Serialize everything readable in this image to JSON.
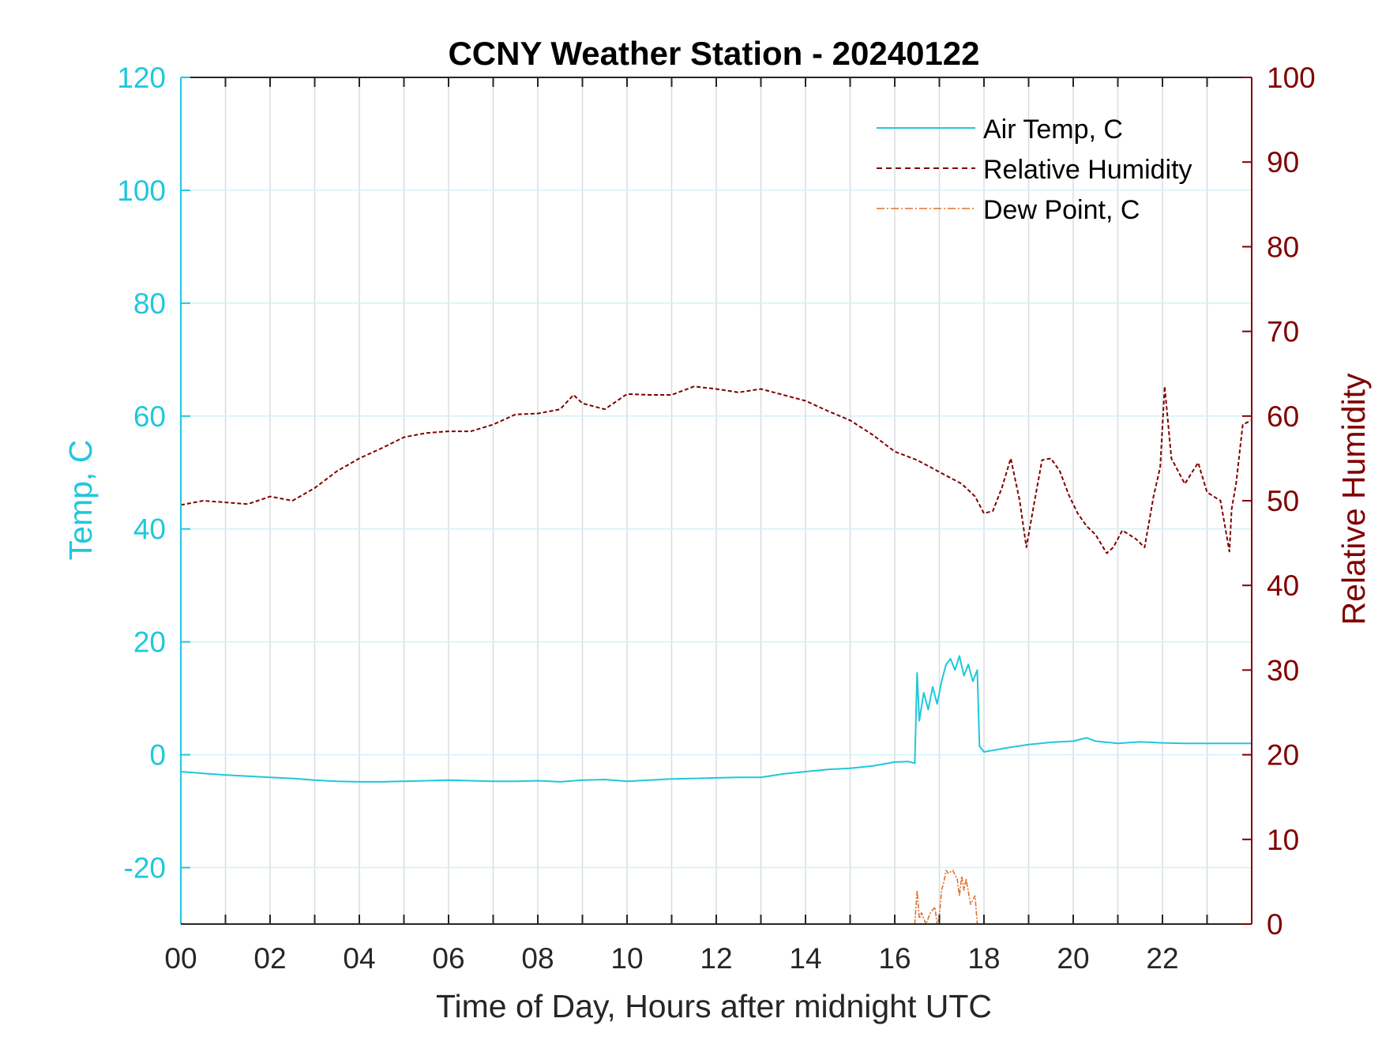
{
  "chart_data": {
    "type": "line",
    "title": "CCNY Weather Station - 20240122",
    "xlabel": "Time of Day, Hours after midnight UTC",
    "ylabel_left": "Temp, C",
    "ylabel_right": "Relative Humidity",
    "xlim": [
      0,
      24
    ],
    "ylim_left": [
      -30,
      120
    ],
    "ylim_right": [
      0,
      100
    ],
    "x_ticks": [
      0,
      2,
      4,
      6,
      8,
      10,
      12,
      14,
      16,
      18,
      20,
      22
    ],
    "x_tick_labels": [
      "00",
      "02",
      "04",
      "06",
      "08",
      "10",
      "12",
      "14",
      "16",
      "18",
      "20",
      "22"
    ],
    "y_left_ticks": [
      -20,
      0,
      20,
      40,
      60,
      80,
      100,
      120
    ],
    "y_left_tick_labels": [
      "-20",
      "0",
      "20",
      "40",
      "60",
      "80",
      "100",
      "120"
    ],
    "y_right_ticks": [
      0,
      10,
      20,
      30,
      40,
      50,
      60,
      70,
      80,
      90,
      100
    ],
    "y_right_tick_labels": [
      "0",
      "10",
      "20",
      "30",
      "40",
      "50",
      "60",
      "70",
      "80",
      "90",
      "100"
    ],
    "grid": true,
    "legend_position": "top-right",
    "colors": {
      "air_temp": "#1fc8dc",
      "relative_humidity": "#800000",
      "dew_point": "#e07030",
      "grid_vertical": "#d8dde3",
      "grid_horizontal": "#d2f2f6"
    },
    "series": [
      {
        "name": "Air Temp, C",
        "axis": "left",
        "style": "solid",
        "x": [
          0,
          0.5,
          1,
          1.5,
          2,
          2.5,
          3,
          3.5,
          4,
          4.5,
          5,
          5.5,
          6,
          6.5,
          7,
          7.5,
          8,
          8.5,
          9,
          9.5,
          10,
          10.5,
          11,
          11.5,
          12,
          12.5,
          13,
          13.5,
          14,
          14.5,
          15,
          15.5,
          16,
          16.3,
          16.45,
          16.5,
          16.55,
          16.65,
          16.75,
          16.85,
          16.95,
          17.05,
          17.15,
          17.25,
          17.35,
          17.45,
          17.55,
          17.65,
          17.75,
          17.85,
          17.9,
          18,
          18.5,
          19,
          19.5,
          20,
          20.3,
          20.5,
          21,
          21.5,
          22,
          22.5,
          23,
          23.5,
          24
        ],
        "values": [
          -3,
          -3.3,
          -3.6,
          -3.8,
          -4,
          -4.2,
          -4.5,
          -4.7,
          -4.8,
          -4.8,
          -4.7,
          -4.6,
          -4.5,
          -4.6,
          -4.7,
          -4.7,
          -4.6,
          -4.8,
          -4.5,
          -4.4,
          -4.7,
          -4.5,
          -4.3,
          -4.2,
          -4.1,
          -4,
          -4,
          -3.4,
          -3,
          -2.6,
          -2.4,
          -2,
          -1.3,
          -1.2,
          -1.5,
          14.5,
          6,
          11,
          8,
          12,
          9,
          13,
          16,
          17,
          15,
          17.5,
          14,
          16,
          13,
          15,
          1.5,
          0.5,
          1.2,
          1.8,
          2.2,
          2.4,
          3,
          2.4,
          2,
          2.3,
          2.1,
          2,
          2,
          2,
          2
        ]
      },
      {
        "name": "Relative Humidity",
        "axis": "right",
        "style": "dashed",
        "x": [
          0,
          0.5,
          1,
          1.5,
          2,
          2.5,
          3,
          3.5,
          4,
          4.5,
          5,
          5.5,
          6,
          6.5,
          7,
          7.5,
          8,
          8.5,
          8.8,
          9,
          9.5,
          10,
          10.5,
          11,
          11.5,
          12,
          12.5,
          13,
          13.5,
          14,
          14.5,
          15,
          15.5,
          16,
          16.5,
          17,
          17.5,
          17.8,
          18,
          18.2,
          18.4,
          18.6,
          18.8,
          18.95,
          19.1,
          19.3,
          19.5,
          19.7,
          19.9,
          20.1,
          20.3,
          20.5,
          20.75,
          20.9,
          21.1,
          21.4,
          21.6,
          21.8,
          21.95,
          22.05,
          22.2,
          22.5,
          22.8,
          23,
          23.3,
          23.5,
          23.55,
          23.65,
          23.8,
          24
        ],
        "values": [
          49.5,
          50,
          49.8,
          49.6,
          50.5,
          50,
          51.5,
          53.5,
          55,
          56.2,
          57.5,
          58,
          58.2,
          58.2,
          59,
          60.2,
          60.3,
          60.8,
          62.5,
          61.5,
          60.8,
          62.6,
          62.5,
          62.5,
          63.5,
          63.2,
          62.8,
          63.2,
          62.5,
          61.8,
          60.6,
          59.5,
          57.8,
          55.8,
          54.8,
          53.4,
          52,
          50.5,
          48.5,
          48.8,
          51.5,
          55,
          50,
          44.5,
          49,
          54.8,
          55,
          53.5,
          50.7,
          48.5,
          47,
          46,
          43.8,
          44.5,
          46.5,
          45.5,
          44.5,
          50.5,
          54,
          63.5,
          55,
          52,
          54.5,
          51,
          50,
          44,
          49,
          52,
          59,
          59.5
        ]
      },
      {
        "name": "Dew Point, C",
        "axis": "left",
        "style": "dashdot",
        "x": [
          16.45,
          16.5,
          16.55,
          16.6,
          16.7,
          16.8,
          16.9,
          16.95,
          17,
          17.05,
          17.1,
          17.15,
          17.2,
          17.3,
          17.4,
          17.45,
          17.5,
          17.55,
          17.6,
          17.7,
          17.8,
          17.85,
          17.9
        ],
        "values": [
          -30,
          -24,
          -29,
          -28,
          -30,
          -28,
          -27,
          -30,
          -28.5,
          -24,
          -22.5,
          -20.5,
          -21,
          -20.5,
          -22,
          -25,
          -21.5,
          -24,
          -22,
          -26.5,
          -25,
          -30,
          -30
        ]
      }
    ]
  }
}
